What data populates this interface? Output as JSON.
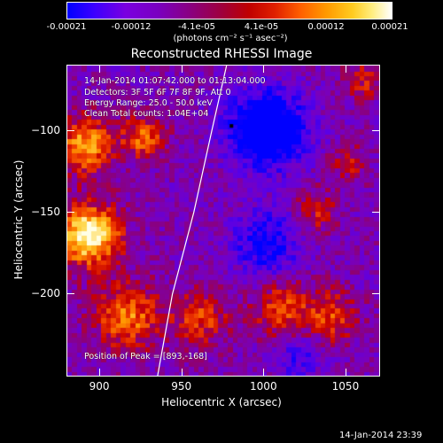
{
  "colorbar": {
    "tick_labels": [
      "-0.00021",
      "-0.00012",
      "-4.1e-05",
      "4.1e-05",
      "0.00012",
      "0.00021"
    ],
    "units_label": "(photons cm⁻² s⁻¹ asec⁻²)"
  },
  "title": "Reconstructed RHESSI Image",
  "info_lines": [
    "14-Jan-2014 01:07:42.000 to 01:13:04.000",
    "Detectors: 3F 5F 6F 7F 8F 9F, Att 0",
    "Energy Range: 25.0 - 50.0 keV",
    "Clean   Total counts: 1.04E+04"
  ],
  "peak_label": "Position of Peak = [893,-168]",
  "timestamp": "14-Jan-2014 23:39",
  "chart_data": {
    "type": "heatmap",
    "title": "Reconstructed RHESSI Image",
    "xlabel": "Heliocentric X (arcsec)",
    "ylabel": "Heliocentric Y (arcsec)",
    "xlim": [
      880,
      1070
    ],
    "ylim": [
      -250,
      -60
    ],
    "xticks": [
      900,
      950,
      1000,
      1050
    ],
    "xtick_labels": [
      "900",
      "950",
      "1000",
      "1050"
    ],
    "yticks": [
      -100,
      -150,
      -200
    ],
    "ytick_labels": [
      "−100",
      "−150",
      "−200"
    ],
    "color_range": [
      -0.00021,
      0.00021
    ],
    "peak_position": [
      893,
      -168
    ],
    "limb_points": [
      [
        977,
        -60
      ],
      [
        968,
        -100
      ],
      [
        957,
        -150
      ],
      [
        944,
        -200
      ],
      [
        935,
        -250
      ]
    ],
    "sources": [
      {
        "x": 892,
        "y": -165,
        "strength": 1.0,
        "sigma": 13
      },
      {
        "x": 890,
        "y": -110,
        "strength": 0.7,
        "sigma": 12
      },
      {
        "x": 925,
        "y": -105,
        "strength": 0.55,
        "sigma": 9
      },
      {
        "x": 915,
        "y": -215,
        "strength": 0.6,
        "sigma": 14
      },
      {
        "x": 960,
        "y": -215,
        "strength": 0.45,
        "sigma": 12
      },
      {
        "x": 1010,
        "y": -210,
        "strength": 0.5,
        "sigma": 12
      },
      {
        "x": 1040,
        "y": -215,
        "strength": 0.45,
        "sigma": 11
      },
      {
        "x": 1030,
        "y": -150,
        "strength": 0.35,
        "sigma": 9
      },
      {
        "x": 1050,
        "y": -120,
        "strength": 0.3,
        "sigma": 8
      },
      {
        "x": 1060,
        "y": -70,
        "strength": 0.35,
        "sigma": 8
      },
      {
        "x": 1000,
        "y": -100,
        "strength": -0.9,
        "sigma": 16
      },
      {
        "x": 1000,
        "y": -170,
        "strength": -0.5,
        "sigma": 14
      },
      {
        "x": 1020,
        "y": -240,
        "strength": -0.3,
        "sigma": 10
      }
    ]
  }
}
